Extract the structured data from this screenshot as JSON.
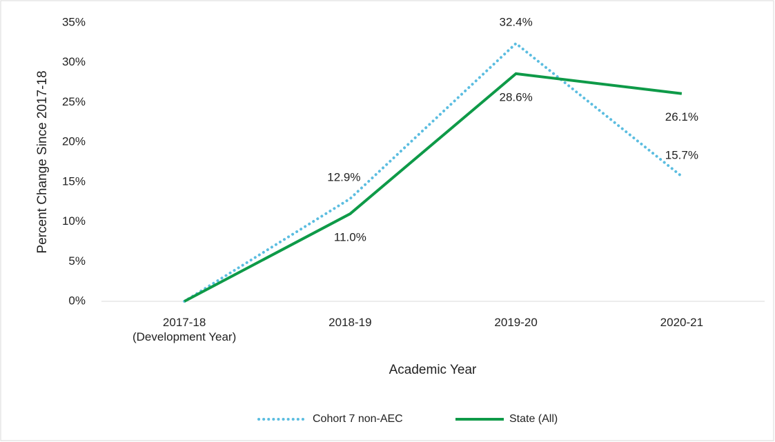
{
  "chart_data": {
    "type": "line",
    "y_label": "Percent Change Since 2017-18",
    "x_label": "Academic Year",
    "categories": [
      "2017-18 (Development Year)",
      "2018-19",
      "2019-20",
      "2020-21"
    ],
    "series": [
      {
        "name": "Cohort 7 non-AEC",
        "color": "#5bbde0",
        "dashed": true,
        "values": [
          0,
          12.9,
          32.4,
          15.7
        ],
        "value_labels": [
          null,
          "12.9%",
          "32.4%",
          "15.7%"
        ]
      },
      {
        "name": "State (All)",
        "color": "#0e9a48",
        "dashed": false,
        "values": [
          0,
          11.0,
          28.6,
          26.1
        ],
        "value_labels": [
          null,
          "11.0%",
          "28.6%",
          "26.1%"
        ]
      }
    ],
    "ylim": [
      0,
      35
    ],
    "yticks": [
      {
        "value": 0,
        "label": "0%"
      },
      {
        "value": 5,
        "label": "5%"
      },
      {
        "value": 10,
        "label": "10%"
      },
      {
        "value": 15,
        "label": "15%"
      },
      {
        "value": 20,
        "label": "20%"
      },
      {
        "value": 25,
        "label": "25%"
      },
      {
        "value": 30,
        "label": "30%"
      },
      {
        "value": 35,
        "label": "35%"
      }
    ],
    "grid": false,
    "legend": "bottom"
  }
}
